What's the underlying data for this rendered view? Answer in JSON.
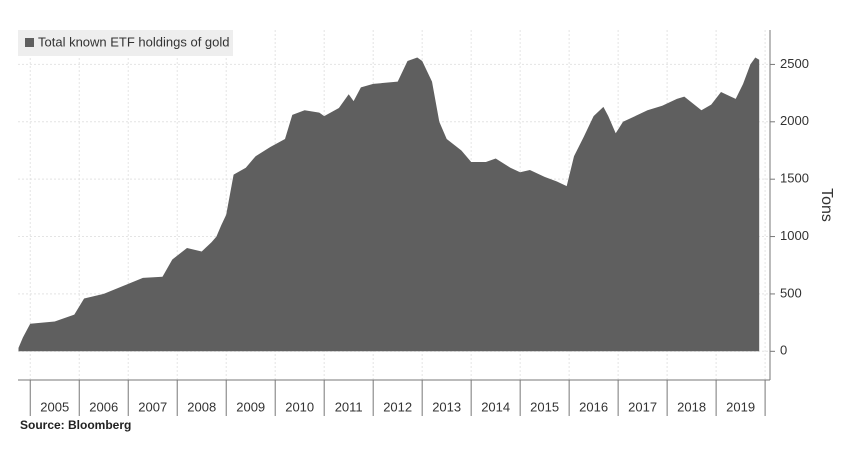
{
  "chart_data": {
    "type": "area",
    "legend": "Total known ETF holdings of gold",
    "ylabel": "Tons",
    "source": "Source: Bloomberg",
    "color": "#5f5f5f",
    "grid": true,
    "xlim": [
      2004.75,
      2020.1
    ],
    "ylim": [
      -250,
      2800
    ],
    "yticks": [
      0,
      500,
      1000,
      1500,
      2000,
      2500
    ],
    "xgrid": [
      2005,
      2006,
      2007,
      2008,
      2009,
      2010,
      2011,
      2012,
      2013,
      2014,
      2015,
      2016,
      2017,
      2018,
      2019,
      2020
    ],
    "xticks": [
      {
        "value": 2005.5,
        "label": "2005"
      },
      {
        "value": 2006.5,
        "label": "2006"
      },
      {
        "value": 2007.5,
        "label": "2007"
      },
      {
        "value": 2008.5,
        "label": "2008"
      },
      {
        "value": 2009.5,
        "label": "2009"
      },
      {
        "value": 2010.5,
        "label": "2010"
      },
      {
        "value": 2011.5,
        "label": "2011"
      },
      {
        "value": 2012.5,
        "label": "2012"
      },
      {
        "value": 2013.5,
        "label": "2013"
      },
      {
        "value": 2014.5,
        "label": "2014"
      },
      {
        "value": 2015.5,
        "label": "2015"
      },
      {
        "value": 2016.5,
        "label": "2016"
      },
      {
        "value": 2017.5,
        "label": "2017"
      },
      {
        "value": 2018.5,
        "label": "2018"
      },
      {
        "value": 2019.5,
        "label": "2019"
      }
    ],
    "x": [
      2004.76,
      2004.85,
      2005.0,
      2005.5,
      2005.9,
      2006.1,
      2006.5,
      2006.9,
      2007.3,
      2007.7,
      2007.9,
      2008.2,
      2008.5,
      2008.7,
      2008.8,
      2008.9,
      2009.0,
      2009.15,
      2009.4,
      2009.6,
      2009.9,
      2010.2,
      2010.35,
      2010.6,
      2010.9,
      2011.0,
      2011.3,
      2011.5,
      2011.6,
      2011.75,
      2012.0,
      2012.5,
      2012.7,
      2012.9,
      2013.0,
      2013.2,
      2013.35,
      2013.5,
      2013.8,
      2014.0,
      2014.3,
      2014.5,
      2014.8,
      2015.0,
      2015.2,
      2015.5,
      2015.75,
      2015.95,
      2016.1,
      2016.3,
      2016.5,
      2016.7,
      2016.8,
      2016.95,
      2017.1,
      2017.4,
      2017.6,
      2017.9,
      2018.2,
      2018.35,
      2018.7,
      2018.9,
      2019.1,
      2019.3,
      2019.4,
      2019.55,
      2019.7,
      2019.8,
      2019.88
    ],
    "values": [
      30,
      120,
      240,
      260,
      320,
      460,
      500,
      570,
      640,
      650,
      800,
      900,
      870,
      950,
      1000,
      1100,
      1190,
      1540,
      1600,
      1700,
      1780,
      1850,
      2060,
      2100,
      2080,
      2050,
      2120,
      2240,
      2180,
      2300,
      2330,
      2350,
      2530,
      2560,
      2530,
      2350,
      2000,
      1850,
      1750,
      1650,
      1650,
      1680,
      1600,
      1560,
      1580,
      1520,
      1480,
      1440,
      1700,
      1870,
      2050,
      2130,
      2050,
      1900,
      2000,
      2060,
      2100,
      2140,
      2200,
      2220,
      2100,
      2150,
      2260,
      2220,
      2200,
      2330,
      2500,
      2560,
      2540
    ]
  }
}
